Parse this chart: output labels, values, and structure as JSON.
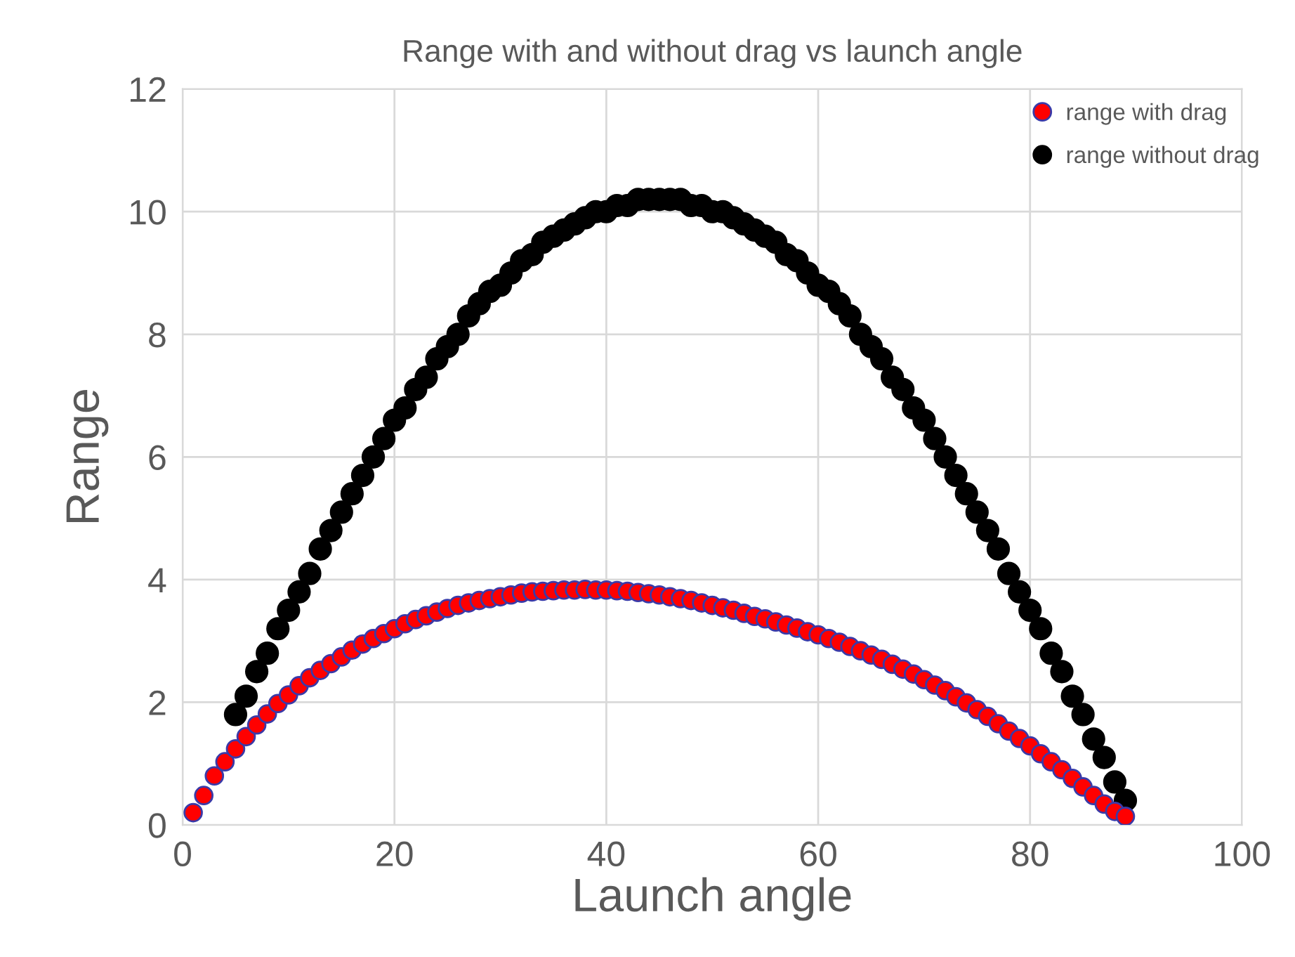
{
  "chart_data": {
    "type": "scatter",
    "title": "Range with and without drag vs launch angle",
    "xlabel": "Launch angle",
    "ylabel": "Range",
    "xlim": [
      0,
      100
    ],
    "xticks": [
      0,
      20,
      40,
      60,
      80,
      100
    ],
    "ylim": [
      0,
      12
    ],
    "yticks": [
      0,
      2,
      4,
      6,
      8,
      10,
      12
    ],
    "grid": true,
    "legend": "top right",
    "marker": "circle",
    "series": [
      {
        "name": "range with drag",
        "color": "#ff0000",
        "x": [
          1,
          2,
          3,
          4,
          5,
          6,
          7,
          8,
          9,
          10,
          11,
          12,
          13,
          14,
          15,
          16,
          17,
          18,
          19,
          20,
          21,
          22,
          23,
          24,
          25,
          26,
          27,
          28,
          29,
          30,
          31,
          32,
          33,
          34,
          35,
          36,
          37,
          38,
          39,
          40,
          41,
          42,
          43,
          44,
          45,
          46,
          47,
          48,
          49,
          50,
          51,
          52,
          53,
          54,
          55,
          56,
          57,
          58,
          59,
          60,
          61,
          62,
          63,
          64,
          65,
          66,
          67,
          68,
          69,
          70,
          71,
          72,
          73,
          74,
          75,
          76,
          77,
          78,
          79,
          80,
          81,
          82,
          83,
          84,
          85,
          86,
          87,
          88,
          89
        ],
        "values": [
          0.2,
          0.48,
          0.8,
          1.03,
          1.24,
          1.44,
          1.63,
          1.81,
          1.98,
          2.12,
          2.27,
          2.4,
          2.52,
          2.63,
          2.74,
          2.85,
          2.95,
          3.04,
          3.12,
          3.2,
          3.28,
          3.35,
          3.41,
          3.47,
          3.53,
          3.58,
          3.62,
          3.66,
          3.69,
          3.72,
          3.75,
          3.78,
          3.8,
          3.81,
          3.82,
          3.83,
          3.83,
          3.84,
          3.83,
          3.83,
          3.82,
          3.81,
          3.79,
          3.77,
          3.75,
          3.72,
          3.69,
          3.66,
          3.62,
          3.58,
          3.54,
          3.5,
          3.45,
          3.4,
          3.36,
          3.31,
          3.26,
          3.21,
          3.15,
          3.1,
          3.04,
          2.98,
          2.91,
          2.84,
          2.77,
          2.7,
          2.62,
          2.54,
          2.46,
          2.37,
          2.28,
          2.19,
          2.09,
          1.99,
          1.88,
          1.77,
          1.65,
          1.53,
          1.41,
          1.29,
          1.16,
          1.03,
          0.9,
          0.76,
          0.62,
          0.48,
          0.34,
          0.22,
          0.14
        ]
      },
      {
        "name": "range without drag",
        "color": "#000000",
        "x": [
          5,
          6,
          7,
          8,
          9,
          10,
          11,
          12,
          13,
          14,
          15,
          16,
          17,
          18,
          19,
          20,
          21,
          22,
          23,
          24,
          25,
          26,
          27,
          28,
          29,
          30,
          31,
          32,
          33,
          34,
          35,
          36,
          37,
          38,
          39,
          40,
          41,
          42,
          43,
          44,
          45,
          46,
          47,
          48,
          49,
          50,
          51,
          52,
          53,
          54,
          55,
          56,
          57,
          58,
          59,
          60,
          61,
          62,
          63,
          64,
          65,
          66,
          67,
          68,
          69,
          70,
          71,
          72,
          73,
          74,
          75,
          76,
          77,
          78,
          79,
          80,
          81,
          82,
          83,
          84,
          85,
          86,
          87,
          88,
          89
        ],
        "values": [
          1.8,
          2.1,
          2.5,
          2.8,
          3.2,
          3.5,
          3.8,
          4.1,
          4.5,
          4.8,
          5.1,
          5.4,
          5.7,
          6.0,
          6.3,
          6.6,
          6.8,
          7.1,
          7.3,
          7.6,
          7.8,
          8.0,
          8.3,
          8.5,
          8.7,
          8.8,
          9.0,
          9.2,
          9.3,
          9.5,
          9.6,
          9.7,
          9.8,
          9.9,
          10.0,
          10.0,
          10.1,
          10.1,
          10.2,
          10.2,
          10.2,
          10.2,
          10.2,
          10.1,
          10.1,
          10.0,
          10.0,
          9.9,
          9.8,
          9.7,
          9.6,
          9.5,
          9.3,
          9.2,
          9.0,
          8.8,
          8.7,
          8.5,
          8.3,
          8.0,
          7.8,
          7.6,
          7.3,
          7.1,
          6.8,
          6.6,
          6.3,
          6.0,
          5.7,
          5.4,
          5.1,
          4.8,
          4.5,
          4.1,
          3.8,
          3.5,
          3.2,
          2.8,
          2.5,
          2.1,
          1.8,
          1.4,
          1.1,
          0.7,
          0.4
        ]
      }
    ]
  }
}
